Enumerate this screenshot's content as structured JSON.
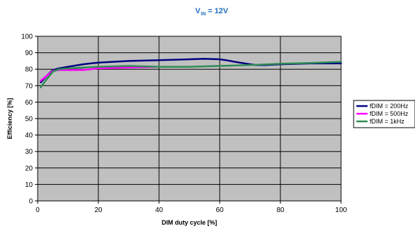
{
  "chart_data": {
    "type": "line",
    "title": {
      "main": "V",
      "sub": "IN",
      "rest": " = 12V"
    },
    "xlabel": "DIM duty cycle  [%]",
    "ylabel": "Efficiency  [%]",
    "xlim": [
      0,
      100
    ],
    "ylim": [
      0,
      100
    ],
    "x_ticks": [
      0,
      20,
      40,
      60,
      80,
      100
    ],
    "y_ticks": [
      0,
      10,
      20,
      30,
      40,
      50,
      60,
      70,
      80,
      90,
      100
    ],
    "grid": "vertical-and-horizontal",
    "plot_background": "#c0c0c0",
    "legend_position": "right",
    "series": [
      {
        "name": "fDIM = 200Hz",
        "color": "#000080",
        "x": [
          1,
          3,
          5,
          7,
          10,
          15,
          20,
          30,
          40,
          50,
          55,
          60,
          62,
          65,
          70,
          72,
          75,
          80,
          90,
          100
        ],
        "y": [
          72,
          76,
          79.5,
          80.5,
          81.5,
          83,
          84,
          85,
          85.5,
          86,
          86.3,
          86,
          85.5,
          84.5,
          83,
          82.5,
          82.5,
          83,
          83.5,
          83.5
        ]
      },
      {
        "name": "fDIM = 500Hz",
        "color": "#ff00ff",
        "x": [
          1,
          3,
          5,
          7,
          10,
          15,
          20,
          30,
          40,
          50
        ],
        "y": [
          73,
          76,
          79,
          79.5,
          79.5,
          79.5,
          80.5,
          81,
          81.5,
          81.5
        ]
      },
      {
        "name": "fDIM = 1kHz",
        "color": "#2e8b57",
        "x": [
          1,
          3,
          5,
          7,
          10,
          15,
          20,
          30,
          40,
          50,
          60,
          70,
          80,
          90,
          100
        ],
        "y": [
          69,
          74,
          78.5,
          80,
          80.5,
          81,
          81.5,
          82,
          81.5,
          81.5,
          82,
          82.5,
          83.3,
          83.8,
          84.5
        ]
      }
    ]
  }
}
